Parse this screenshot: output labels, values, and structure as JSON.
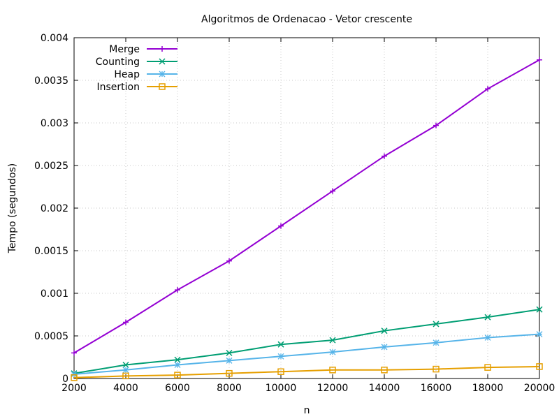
{
  "chart_data": {
    "type": "line",
    "title": "Algoritmos de Ordenacao - Vetor crescente",
    "xlabel": "n",
    "ylabel": "Tempo (segundos)",
    "xlim": [
      2000,
      20000
    ],
    "ylim": [
      0,
      0.004
    ],
    "x_ticks": [
      "2000",
      "4000",
      "6000",
      "8000",
      "10000",
      "12000",
      "14000",
      "16000",
      "18000",
      "20000"
    ],
    "y_ticks": [
      "0",
      "0.0005",
      "0.001",
      "0.0015",
      "0.002",
      "0.0025",
      "0.003",
      "0.0035",
      "0.004"
    ],
    "x_tick_values": [
      2000,
      4000,
      6000,
      8000,
      10000,
      12000,
      14000,
      16000,
      18000,
      20000
    ],
    "y_tick_values": [
      0,
      0.0005,
      0.001,
      0.0015,
      0.002,
      0.0025,
      0.003,
      0.0035,
      0.004
    ],
    "grid": true,
    "legend_position": "top-left",
    "x": [
      2000,
      4000,
      6000,
      8000,
      10000,
      12000,
      14000,
      16000,
      18000,
      20000
    ],
    "series": [
      {
        "name": "Merge",
        "color": "#9400d3",
        "marker": "plus",
        "values": [
          0.0003,
          0.00066,
          0.00104,
          0.00138,
          0.00179,
          0.0022,
          0.00261,
          0.00297,
          0.0034,
          0.00374
        ]
      },
      {
        "name": "Counting",
        "color": "#009e73",
        "marker": "cross",
        "values": [
          6e-05,
          0.00016,
          0.00022,
          0.0003,
          0.0004,
          0.00045,
          0.00056,
          0.00064,
          0.00072,
          0.00081
        ]
      },
      {
        "name": "Heap",
        "color": "#56b4e9",
        "marker": "star",
        "values": [
          5e-05,
          0.0001,
          0.00016,
          0.00021,
          0.00026,
          0.00031,
          0.00037,
          0.00042,
          0.00048,
          0.00052
        ]
      },
      {
        "name": "Insertion",
        "color": "#e69f00",
        "marker": "square",
        "values": [
          1e-05,
          3e-05,
          4e-05,
          6e-05,
          8e-05,
          0.0001,
          0.0001,
          0.00011,
          0.00013,
          0.00014
        ]
      }
    ]
  }
}
